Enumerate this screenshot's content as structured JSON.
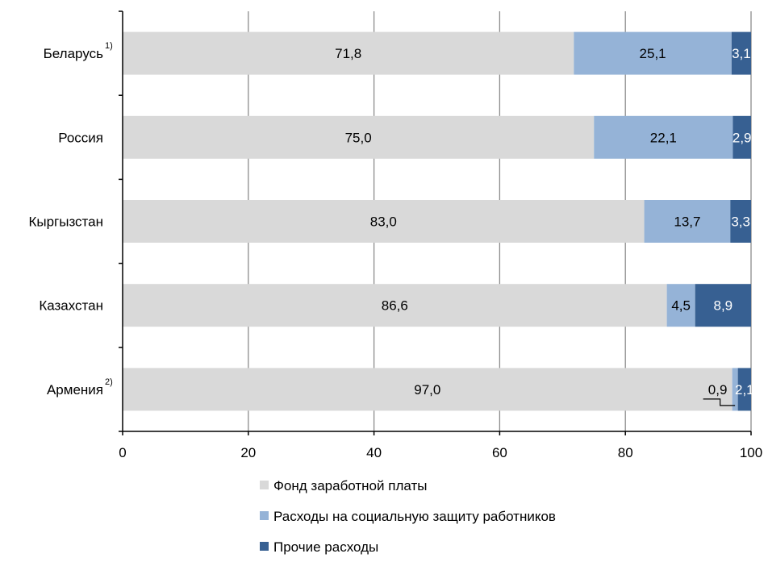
{
  "chart_data": {
    "type": "bar",
    "orientation": "horizontal",
    "stacked": true,
    "categories": [
      "Беларусь",
      "Россия",
      "Кыргызстан",
      "Казахстан",
      "Армения"
    ],
    "category_footnotes": [
      "1)",
      "",
      "",
      "",
      "2)"
    ],
    "series": [
      {
        "name": "Фонд заработной платы",
        "color": "#d9d9d9",
        "label_color": "#000000",
        "values": [
          71.8,
          75.0,
          83.0,
          86.6,
          97.0
        ],
        "labels": [
          "71,8",
          "75,0",
          "83,0",
          "86,6",
          "97,0"
        ]
      },
      {
        "name": "Расходы на социальную защиту работников",
        "color": "#95b3d7",
        "label_color": "#000000",
        "values": [
          25.1,
          22.1,
          13.7,
          4.5,
          0.9
        ],
        "labels": [
          "25,1",
          "22,1",
          "13,7",
          "4,5",
          "0,9"
        ]
      },
      {
        "name": "Прочие расходы",
        "color": "#376092",
        "label_color": "#ffffff",
        "values": [
          3.1,
          2.9,
          3.3,
          8.9,
          2.1
        ],
        "labels": [
          "3,1",
          "2,9",
          "3,3",
          "8,9",
          "2,1"
        ]
      }
    ],
    "xlim": [
      0,
      100
    ],
    "xticks": [
      "0",
      "20",
      "40",
      "60",
      "80",
      "100"
    ],
    "grid": true,
    "legend": "bottom"
  }
}
